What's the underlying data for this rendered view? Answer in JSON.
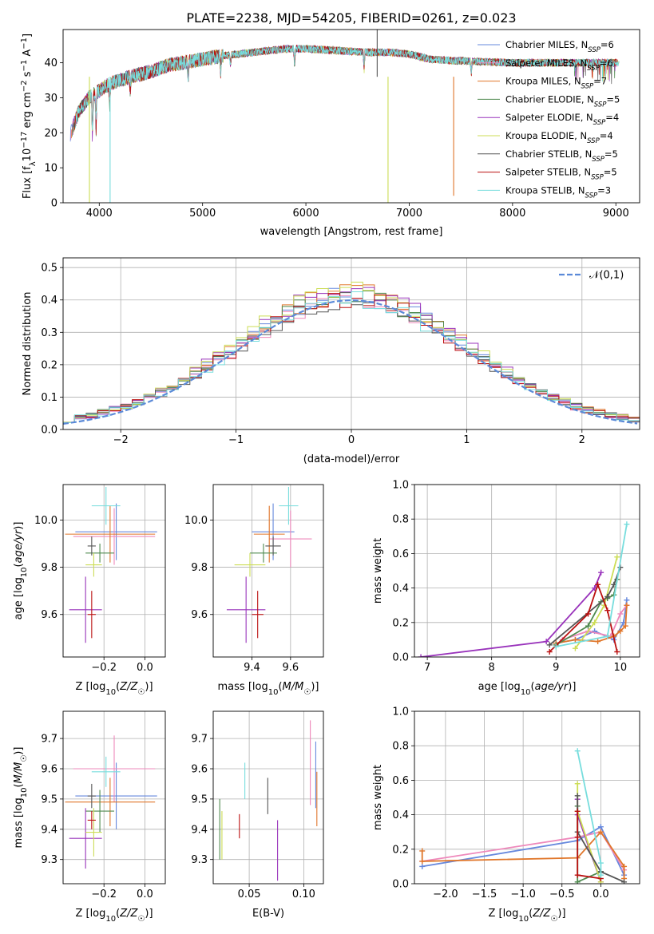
{
  "figure": {
    "title": "PLATE=2238, MJD=54205, FIBERID=0261, z=0.023"
  },
  "chart_data": [
    {
      "panel": "spectrum",
      "type": "line",
      "title": "PLATE=2238, MJD=54205, FIBERID=0261, z=0.023",
      "xlabel": "wavelength [Angstrom, rest frame]",
      "ylabel": "Flux [fλ10⁻¹⁷ erg cm⁻² s⁻¹ A⁻¹]",
      "xlim": [
        3650,
        9230
      ],
      "ylim": [
        0,
        49.5
      ],
      "xticks": [
        4000,
        5000,
        6000,
        7000,
        8000,
        9000
      ],
      "yticks": [
        0,
        10,
        20,
        30,
        40
      ],
      "grid": false,
      "legend_position": "top-right",
      "continuum": {
        "x": [
          3700,
          3800,
          3900,
          4000,
          4100,
          4300,
          4500,
          4700,
          5000,
          5200,
          5500,
          5800,
          6000,
          6300,
          6600,
          6800,
          7000,
          7200,
          7500,
          8000,
          8500,
          9000,
          9200
        ],
        "y": [
          18,
          26,
          30,
          32,
          34,
          36,
          37.5,
          39.5,
          41,
          42,
          43,
          44,
          44,
          43.5,
          43,
          43,
          42.5,
          41,
          40.5,
          40,
          40,
          40,
          40
        ]
      },
      "series": [
        {
          "name": "Chabrier MILES, N_SSP=6",
          "color": "#6688dd"
        },
        {
          "name": "Salpeter MILES, N_SSP=6",
          "color": "#ee88bb"
        },
        {
          "name": "Kroupa MILES, N_SSP=7",
          "color": "#e0762a"
        },
        {
          "name": "Chabrier ELODIE, N_SSP=5",
          "color": "#4f8a4f"
        },
        {
          "name": "Salpeter ELODIE, N_SSP=4",
          "color": "#9933bb"
        },
        {
          "name": "Kroupa ELODIE, N_SSP=4",
          "color": "#ccdd55"
        },
        {
          "name": "Chabrier STELIB, N_SSP=5",
          "color": "#555555"
        },
        {
          "name": "Salpeter STELIB, N_SSP=5",
          "color": "#bb1111"
        },
        {
          "name": "Kroupa STELIB, N_SSP=3",
          "color": "#77dddd"
        }
      ],
      "legend_labels": [
        {
          "pre": "Chabrier MILES, N",
          "sub": "SSP",
          "post": "=6"
        },
        {
          "pre": "Salpeter MILES, N",
          "sub": "SSP",
          "post": "=6"
        },
        {
          "pre": "Kroupa MILES, N",
          "sub": "SSP",
          "post": "=7"
        },
        {
          "pre": "Chabrier ELODIE, N",
          "sub": "SSP",
          "post": "=5"
        },
        {
          "pre": "Salpeter ELODIE, N",
          "sub": "SSP",
          "post": "=4"
        },
        {
          "pre": "Kroupa ELODIE, N",
          "sub": "SSP",
          "post": "=4"
        },
        {
          "pre": "Chabrier STELIB, N",
          "sub": "SSP",
          "post": "=5"
        },
        {
          "pre": "Salpeter STELIB, N",
          "sub": "SSP",
          "post": "=5"
        },
        {
          "pre": "Kroupa STELIB, N",
          "sub": "SSP",
          "post": "=3"
        }
      ]
    },
    {
      "panel": "residual_distribution",
      "type": "line",
      "xlabel": "(data-model)/error",
      "ylabel": "Normed distribution",
      "xlim": [
        -2.5,
        2.5
      ],
      "ylim": [
        0,
        0.53
      ],
      "xticks": [
        -2,
        -1,
        0,
        1,
        2
      ],
      "yticks": [
        0.0,
        0.1,
        0.2,
        0.3,
        0.4,
        0.5
      ],
      "grid": true,
      "legend_position": "top-right",
      "reference_curve": {
        "name": "𝒩(0,1)",
        "mean": 0,
        "sigma": 1,
        "color": "#5b8ad8"
      },
      "histograms": [
        {
          "color": "#6688dd",
          "peak": 0.4
        },
        {
          "color": "#ee88bb",
          "peak": 0.39
        },
        {
          "color": "#e0762a",
          "peak": 0.41
        },
        {
          "color": "#4f8a4f",
          "peak": 0.4
        },
        {
          "color": "#9933bb",
          "peak": 0.42
        },
        {
          "color": "#ccdd55",
          "peak": 0.42
        },
        {
          "color": "#555555",
          "peak": 0.39
        },
        {
          "color": "#bb1111",
          "peak": 0.39
        },
        {
          "color": "#77dddd",
          "peak": 0.39
        }
      ]
    },
    {
      "panel": "age_vs_Z",
      "type": "scatter",
      "xlabel": "Z [log₁₀(Z/Z☉)]",
      "ylabel": "age  [log₁₀(age/yr)]",
      "xlim": [
        -0.4,
        0.1
      ],
      "ylim": [
        9.42,
        10.15
      ],
      "xticks": [
        -0.2,
        0.0
      ],
      "yticks": [
        9.6,
        9.8,
        10.0
      ],
      "grid": true,
      "points": [
        {
          "color": "#6688dd",
          "x": -0.14,
          "xerr": 0.2,
          "y": 9.95,
          "yerr": 0.12
        },
        {
          "color": "#ee88bb",
          "x": -0.15,
          "xerr": 0.2,
          "y": 9.93,
          "yerr": 0.12
        },
        {
          "color": "#e0762a",
          "x": -0.17,
          "xerr": 0.22,
          "y": 9.94,
          "yerr": 0.12
        },
        {
          "color": "#4f8a4f",
          "x": -0.22,
          "xerr": 0.07,
          "y": 9.86,
          "yerr": 0.04
        },
        {
          "color": "#9933bb",
          "x": -0.29,
          "xerr": 0.08,
          "y": 9.62,
          "yerr": 0.14
        },
        {
          "color": "#ccdd55",
          "x": -0.25,
          "xerr": 0.04,
          "y": 9.81,
          "yerr": 0.05
        },
        {
          "color": "#555555",
          "x": -0.26,
          "xerr": 0.02,
          "y": 9.89,
          "yerr": 0.04
        },
        {
          "color": "#bb1111",
          "x": -0.26,
          "xerr": 0.02,
          "y": 9.6,
          "yerr": 0.1
        },
        {
          "color": "#77dddd",
          "x": -0.19,
          "xerr": 0.07,
          "y": 10.06,
          "yerr": 0.08
        }
      ]
    },
    {
      "panel": "age_vs_mass",
      "type": "scatter",
      "xlabel": "mass [log₁₀(M/M☉)]",
      "ylabel": "",
      "xlim": [
        9.2,
        9.77
      ],
      "ylim": [
        9.42,
        10.15
      ],
      "xticks": [
        9.4,
        9.6
      ],
      "yticks": [
        9.6,
        9.8,
        10.0
      ],
      "grid": true,
      "points": [
        {
          "color": "#6688dd",
          "x": 9.51,
          "xerr": 0.11,
          "y": 9.95,
          "yerr": 0.12
        },
        {
          "color": "#ee88bb",
          "x": 9.6,
          "xerr": 0.11,
          "y": 9.92,
          "yerr": 0.12
        },
        {
          "color": "#e0762a",
          "x": 9.49,
          "xerr": 0.08,
          "y": 9.94,
          "yerr": 0.12
        },
        {
          "color": "#4f8a4f",
          "x": 9.46,
          "xerr": 0.07,
          "y": 9.86,
          "yerr": 0.04
        },
        {
          "color": "#9933bb",
          "x": 9.37,
          "xerr": 0.1,
          "y": 9.62,
          "yerr": 0.14
        },
        {
          "color": "#ccdd55",
          "x": 9.39,
          "xerr": 0.08,
          "y": 9.81,
          "yerr": 0.05
        },
        {
          "color": "#555555",
          "x": 9.51,
          "xerr": 0.04,
          "y": 9.89,
          "yerr": 0.04
        },
        {
          "color": "#bb1111",
          "x": 9.43,
          "xerr": 0.03,
          "y": 9.6,
          "yerr": 0.1
        },
        {
          "color": "#77dddd",
          "x": 9.59,
          "xerr": 0.05,
          "y": 10.06,
          "yerr": 0.08
        }
      ]
    },
    {
      "panel": "mass_weight_vs_age",
      "type": "line",
      "xlabel": "age  [log₁₀(age/yr)]",
      "ylabel": "mass weight",
      "xlim": [
        6.8,
        10.3
      ],
      "ylim": [
        0,
        1.0
      ],
      "xticks": [
        7,
        8,
        9,
        10
      ],
      "yticks": [
        0.0,
        0.2,
        0.4,
        0.6,
        0.8,
        1.0
      ],
      "grid": true,
      "series": [
        {
          "color": "#6688dd",
          "x": [
            9.0,
            9.3,
            9.6,
            9.9,
            10.05,
            10.1
          ],
          "y": [
            0.08,
            0.1,
            0.15,
            0.1,
            0.2,
            0.33
          ]
        },
        {
          "color": "#ee88bb",
          "x": [
            9.1,
            9.5,
            9.85,
            10.0,
            10.1
          ],
          "y": [
            0.1,
            0.15,
            0.12,
            0.25,
            0.3
          ]
        },
        {
          "color": "#e0762a",
          "x": [
            9.0,
            9.3,
            9.65,
            9.9,
            10.0,
            10.08,
            10.1
          ],
          "y": [
            0.08,
            0.1,
            0.09,
            0.12,
            0.15,
            0.18,
            0.3
          ]
        },
        {
          "color": "#4f8a4f",
          "x": [
            9.0,
            9.5,
            9.7,
            9.8,
            9.9,
            9.95
          ],
          "y": [
            0.07,
            0.18,
            0.32,
            0.34,
            0.36,
            0.45
          ]
        },
        {
          "color": "#9933bb",
          "x": [
            6.9,
            8.85,
            9.6,
            9.7
          ],
          "y": [
            0.0,
            0.09,
            0.4,
            0.49
          ]
        },
        {
          "color": "#ccdd55",
          "x": [
            9.3,
            9.6,
            9.75,
            9.95
          ],
          "y": [
            0.05,
            0.2,
            0.3,
            0.58
          ]
        },
        {
          "color": "#555555",
          "x": [
            8.9,
            9.8,
            9.9,
            10.0
          ],
          "y": [
            0.07,
            0.35,
            0.42,
            0.52
          ]
        },
        {
          "color": "#bb1111",
          "x": [
            8.9,
            9.5,
            9.65,
            9.8,
            9.95
          ],
          "y": [
            0.03,
            0.25,
            0.42,
            0.27,
            0.03
          ]
        },
        {
          "color": "#77dddd",
          "x": [
            9.0,
            9.8,
            10.1
          ],
          "y": [
            0.06,
            0.12,
            0.77
          ]
        }
      ]
    },
    {
      "panel": "mass_vs_Z",
      "type": "scatter",
      "xlabel": "Z [log₁₀(Z/Z☉)]",
      "ylabel": "mass [log₁₀(M/M☉)]",
      "xlim": [
        -0.4,
        0.1
      ],
      "ylim": [
        9.22,
        9.79
      ],
      "xticks": [
        -0.2,
        0.0
      ],
      "yticks": [
        9.3,
        9.4,
        9.5,
        9.6,
        9.7
      ],
      "grid": true,
      "points": [
        {
          "color": "#6688dd",
          "x": -0.14,
          "xerr": 0.2,
          "y": 9.51,
          "yerr": 0.11
        },
        {
          "color": "#ee88bb",
          "x": -0.15,
          "xerr": 0.2,
          "y": 9.6,
          "yerr": 0.11
        },
        {
          "color": "#e0762a",
          "x": -0.17,
          "xerr": 0.22,
          "y": 9.49,
          "yerr": 0.08
        },
        {
          "color": "#4f8a4f",
          "x": -0.22,
          "xerr": 0.07,
          "y": 9.46,
          "yerr": 0.07
        },
        {
          "color": "#9933bb",
          "x": -0.29,
          "xerr": 0.08,
          "y": 9.37,
          "yerr": 0.1
        },
        {
          "color": "#ccdd55",
          "x": -0.25,
          "xerr": 0.04,
          "y": 9.39,
          "yerr": 0.08
        },
        {
          "color": "#555555",
          "x": -0.26,
          "xerr": 0.02,
          "y": 9.51,
          "yerr": 0.04
        },
        {
          "color": "#bb1111",
          "x": -0.26,
          "xerr": 0.02,
          "y": 9.43,
          "yerr": 0.03
        },
        {
          "color": "#77dddd",
          "x": -0.19,
          "xerr": 0.07,
          "y": 9.59,
          "yerr": 0.05
        }
      ]
    },
    {
      "panel": "mass_vs_EBV",
      "type": "scatter",
      "xlabel": "E(B-V)",
      "ylabel": "",
      "xlim": [
        0.017,
        0.118
      ],
      "ylim": [
        9.22,
        9.79
      ],
      "xticks": [
        0.05,
        0.1
      ],
      "yticks": [
        9.3,
        9.4,
        9.5,
        9.6,
        9.7
      ],
      "grid": true,
      "points": [
        {
          "color": "#6688dd",
          "x": 0.111,
          "y": 9.58,
          "yerr": 0.11
        },
        {
          "color": "#ee88bb",
          "x": 0.106,
          "y": 9.62,
          "yerr": 0.14
        },
        {
          "color": "#e0762a",
          "x": 0.112,
          "y": 9.5,
          "yerr": 0.09
        },
        {
          "color": "#4f8a4f",
          "x": 0.023,
          "y": 9.4,
          "yerr": 0.1
        },
        {
          "color": "#9933bb",
          "x": 0.076,
          "y": 9.33,
          "yerr": 0.1
        },
        {
          "color": "#ccdd55",
          "x": 0.025,
          "y": 9.38,
          "yerr": 0.08
        },
        {
          "color": "#555555",
          "x": 0.067,
          "y": 9.51,
          "yerr": 0.06
        },
        {
          "color": "#bb1111",
          "x": 0.041,
          "y": 9.41,
          "yerr": 0.04
        },
        {
          "color": "#77dddd",
          "x": 0.046,
          "y": 9.56,
          "yerr": 0.06
        }
      ]
    },
    {
      "panel": "mass_weight_vs_Z",
      "type": "line",
      "xlabel": "Z [log₁₀(Z/Z☉)]",
      "ylabel": "mass weight",
      "xlim": [
        -2.4,
        0.5
      ],
      "ylim": [
        0,
        1.0
      ],
      "xticks": [
        -2.0,
        -1.5,
        -1.0,
        -0.5,
        0.0
      ],
      "yticks": [
        0.0,
        0.2,
        0.4,
        0.6,
        0.8,
        1.0
      ],
      "grid": true,
      "series": [
        {
          "color": "#6688dd",
          "x": [
            -2.3,
            -0.3,
            0.0,
            0.3
          ],
          "y": [
            0.1,
            0.25,
            0.33,
            0.05
          ]
        },
        {
          "color": "#ee88bb",
          "x": [
            -2.3,
            -0.3,
            0.0,
            0.3
          ],
          "y": [
            0.13,
            0.27,
            0.3,
            0.08
          ]
        },
        {
          "color": "#e0762a",
          "x": [
            -2.3,
            -2.3,
            -0.3,
            0.0,
            0.3,
            0.3
          ],
          "y": [
            0.19,
            0.13,
            0.15,
            0.3,
            0.1,
            0.03
          ]
        },
        {
          "color": "#4f8a4f",
          "x": [
            -0.3,
            -0.3,
            0.0
          ],
          "y": [
            0.45,
            0.01,
            0.07
          ]
        },
        {
          "color": "#9933bb",
          "x": [
            -0.3,
            -0.3,
            0.0
          ],
          "y": [
            0.49,
            0.4,
            0.01
          ]
        },
        {
          "color": "#ccdd55",
          "x": [
            -0.3,
            -0.3,
            0.0
          ],
          "y": [
            0.58,
            0.42,
            0.01
          ]
        },
        {
          "color": "#555555",
          "x": [
            -0.3,
            -0.3,
            0.0,
            0.3
          ],
          "y": [
            0.51,
            0.3,
            0.07,
            0.01
          ]
        },
        {
          "color": "#bb1111",
          "x": [
            -0.3,
            -0.3,
            -0.3,
            0.0
          ],
          "y": [
            0.42,
            0.27,
            0.05,
            0.03
          ]
        },
        {
          "color": "#77dddd",
          "x": [
            -0.3,
            0.0,
            0.0
          ],
          "y": [
            0.77,
            0.12,
            0.05
          ]
        }
      ]
    }
  ]
}
